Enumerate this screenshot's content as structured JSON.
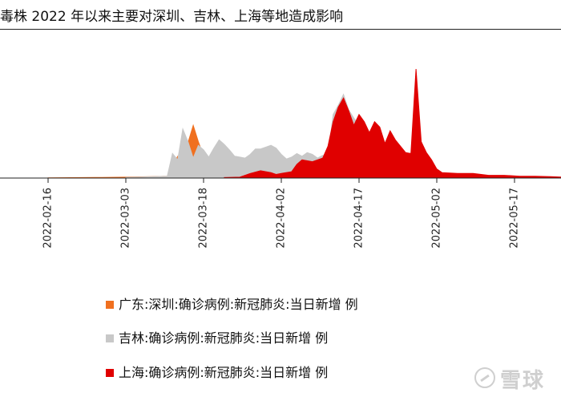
{
  "title": "毒株 2022 年以来主要对深圳、吉林、上海等地造成影响",
  "watermark": {
    "text": "雪球",
    "icon": "xueqiu-logo-icon"
  },
  "chart_data": {
    "type": "area",
    "x_start": "2022-02-06",
    "x_end": "2022-05-27",
    "x_tick_labels": [
      "2022-02-16",
      "2022-03-03",
      "2022-03-18",
      "2022-04-02",
      "2022-04-17",
      "2022-05-02",
      "2022-05-17"
    ],
    "grid": false,
    "legend_position": "bottom",
    "series": [
      {
        "name": "广东:深圳:确诊病例:新冠肺炎:当日新增 例",
        "color": "#f07020",
        "points": [
          [
            "2022-02-16",
            0.3
          ],
          [
            "2022-02-25",
            0.6
          ],
          [
            "2022-03-03",
            1
          ],
          [
            "2022-03-08",
            1.5
          ],
          [
            "2022-03-11",
            2
          ],
          [
            "2022-03-13",
            24
          ],
          [
            "2022-03-14",
            20
          ],
          [
            "2022-03-16",
            58
          ],
          [
            "2022-03-17",
            40
          ],
          [
            "2022-03-18",
            24
          ],
          [
            "2022-03-19",
            18
          ],
          [
            "2022-03-20",
            12
          ],
          [
            "2022-03-21",
            8
          ],
          [
            "2022-03-23",
            4
          ],
          [
            "2022-03-26",
            2
          ],
          [
            "2022-04-02",
            1
          ],
          [
            "2022-04-10",
            0.5
          ],
          [
            "2022-04-20",
            0
          ]
        ]
      },
      {
        "name": "吉林:确诊病例:新冠肺炎:当日新增 例",
        "color": "#c8c8c8",
        "points": [
          [
            "2022-03-03",
            0.5
          ],
          [
            "2022-03-11",
            2
          ],
          [
            "2022-03-12",
            27
          ],
          [
            "2022-03-13",
            20
          ],
          [
            "2022-03-14",
            54
          ],
          [
            "2022-03-15",
            40
          ],
          [
            "2022-03-16",
            22
          ],
          [
            "2022-03-17",
            36
          ],
          [
            "2022-03-18",
            31
          ],
          [
            "2022-03-19",
            23
          ],
          [
            "2022-03-20",
            33
          ],
          [
            "2022-03-21",
            42
          ],
          [
            "2022-03-22",
            37
          ],
          [
            "2022-03-23",
            31
          ],
          [
            "2022-03-24",
            24
          ],
          [
            "2022-03-25",
            23
          ],
          [
            "2022-03-26",
            22
          ],
          [
            "2022-03-27",
            26
          ],
          [
            "2022-03-28",
            32
          ],
          [
            "2022-03-29",
            32
          ],
          [
            "2022-03-30",
            34
          ],
          [
            "2022-03-31",
            36
          ],
          [
            "2022-04-01",
            33
          ],
          [
            "2022-04-02",
            26
          ],
          [
            "2022-04-03",
            21
          ],
          [
            "2022-04-04",
            23
          ],
          [
            "2022-04-05",
            27
          ],
          [
            "2022-04-06",
            24
          ],
          [
            "2022-04-07",
            28
          ],
          [
            "2022-04-08",
            26
          ],
          [
            "2022-04-09",
            22
          ],
          [
            "2022-04-10",
            25
          ],
          [
            "2022-04-11",
            24
          ],
          [
            "2022-04-12",
            70
          ],
          [
            "2022-04-13",
            80
          ],
          [
            "2022-04-14",
            92
          ],
          [
            "2022-04-15",
            75
          ],
          [
            "2022-04-16",
            66
          ],
          [
            "2022-04-17",
            58
          ],
          [
            "2022-04-18",
            50
          ],
          [
            "2022-04-19",
            35
          ],
          [
            "2022-04-20",
            20
          ],
          [
            "2022-04-22",
            8
          ],
          [
            "2022-04-26",
            3
          ],
          [
            "2022-05-01",
            1
          ],
          [
            "2022-05-06",
            0
          ]
        ]
      },
      {
        "name": "上海:确诊病例:新冠肺炎:当日新增 例",
        "color": "#e00000",
        "points": [
          [
            "2022-03-22",
            0.5
          ],
          [
            "2022-03-25",
            1
          ],
          [
            "2022-03-27",
            5
          ],
          [
            "2022-03-29",
            8
          ],
          [
            "2022-03-31",
            6
          ],
          [
            "2022-04-01",
            4
          ],
          [
            "2022-04-02",
            5
          ],
          [
            "2022-04-04",
            7
          ],
          [
            "2022-04-05",
            15
          ],
          [
            "2022-04-06",
            20
          ],
          [
            "2022-04-08",
            18
          ],
          [
            "2022-04-09",
            20
          ],
          [
            "2022-04-10",
            22
          ],
          [
            "2022-04-11",
            35
          ],
          [
            "2022-04-12",
            62
          ],
          [
            "2022-04-13",
            78
          ],
          [
            "2022-04-14",
            88
          ],
          [
            "2022-04-15",
            74
          ],
          [
            "2022-04-16",
            58
          ],
          [
            "2022-04-17",
            70
          ],
          [
            "2022-04-18",
            62
          ],
          [
            "2022-04-19",
            50
          ],
          [
            "2022-04-20",
            62
          ],
          [
            "2022-04-21",
            56
          ],
          [
            "2022-04-22",
            38
          ],
          [
            "2022-04-23",
            52
          ],
          [
            "2022-04-24",
            42
          ],
          [
            "2022-04-25",
            35
          ],
          [
            "2022-04-26",
            28
          ],
          [
            "2022-04-27",
            27
          ],
          [
            "2022-04-28",
            120
          ],
          [
            "2022-04-29",
            40
          ],
          [
            "2022-04-30",
            28
          ],
          [
            "2022-05-01",
            20
          ],
          [
            "2022-05-02",
            10
          ],
          [
            "2022-05-03",
            6
          ],
          [
            "2022-05-06",
            5
          ],
          [
            "2022-05-09",
            5
          ],
          [
            "2022-05-12",
            3
          ],
          [
            "2022-05-15",
            3
          ],
          [
            "2022-05-18",
            2
          ],
          [
            "2022-05-21",
            2
          ],
          [
            "2022-05-24",
            1.5
          ],
          [
            "2022-05-27",
            1
          ]
        ]
      }
    ]
  }
}
